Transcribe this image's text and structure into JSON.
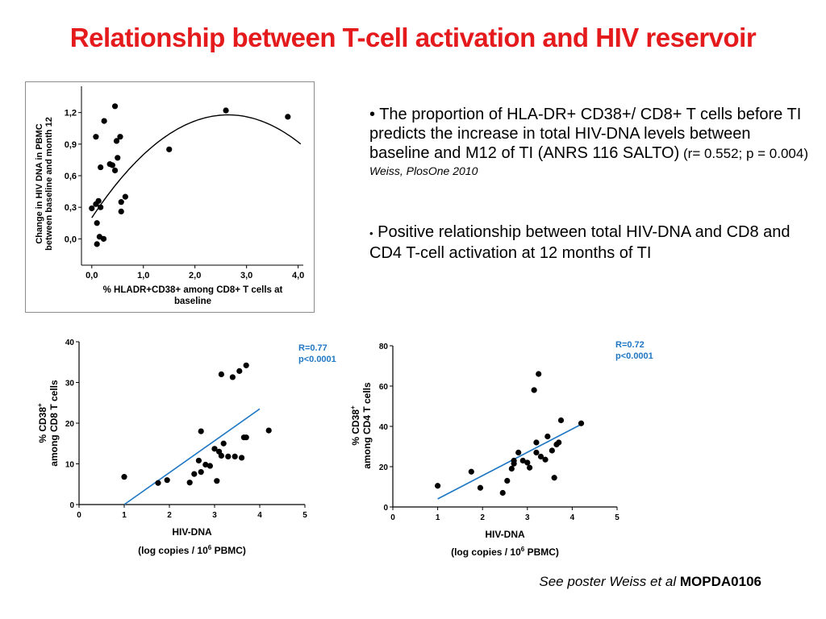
{
  "title": "Relationship between T-cell activation and HIV reservoir",
  "bullets": [
    {
      "bullet": "•",
      "text": "The proportion of HLA-DR+ CD38+/ CD8+ T cells before TI predicts the increase in total HIV-DNA levels between baseline and M12 of TI (ANRS 116 SALTO)",
      "stats": " (r= 0.552; p = 0.004)",
      "citation": "Weiss, PlosOne 2010"
    },
    {
      "bullet": "•",
      "text": " Positive relationship between total HIV-DNA and CD8 and CD4 T-cell activation at 12 months of TI"
    }
  ],
  "footer": {
    "italic": "See poster Weiss et al ",
    "bold": "MOPDA0106"
  },
  "chart_data": [
    {
      "type": "scatter",
      "ylabel_line1": "Change in HIV DNA in PBMC",
      "ylabel_line2": "between baseline and month 12",
      "xlabel_line1": "% HLADR+CD38+ among CD8+ T cells at",
      "xlabel_line2": "baseline",
      "xticks": [
        0,
        1,
        2,
        3,
        4
      ],
      "xtick_labels": [
        "0,0",
        "1,0",
        "2,0",
        "3,0",
        "4,0"
      ],
      "yticks": [
        0,
        0.3,
        0.6,
        0.9,
        1.2
      ],
      "ytick_labels": [
        "0,0",
        "0,3",
        "0,6",
        "0,9",
        "1,2"
      ],
      "xlim": [
        -0.2,
        4.1
      ],
      "ylim": [
        -0.25,
        1.45
      ],
      "fit": "quadratic",
      "fit_coefficients": [
        0.2,
        0.74,
        -0.14
      ],
      "points": [
        [
          0.0,
          0.29
        ],
        [
          0.08,
          0.33
        ],
        [
          0.08,
          0.97
        ],
        [
          0.1,
          0.15
        ],
        [
          0.1,
          -0.05
        ],
        [
          0.13,
          0.36
        ],
        [
          0.17,
          0.68
        ],
        [
          0.15,
          0.02
        ],
        [
          0.17,
          0.3
        ],
        [
          0.23,
          0.0
        ],
        [
          0.24,
          1.12
        ],
        [
          0.35,
          0.71
        ],
        [
          0.4,
          0.7
        ],
        [
          0.45,
          1.26
        ],
        [
          0.45,
          0.65
        ],
        [
          0.48,
          0.93
        ],
        [
          0.5,
          0.77
        ],
        [
          0.55,
          0.97
        ],
        [
          0.57,
          0.35
        ],
        [
          0.57,
          0.26
        ],
        [
          0.65,
          0.4
        ],
        [
          1.5,
          0.85
        ],
        [
          2.6,
          1.22
        ],
        [
          3.8,
          1.16
        ]
      ]
    },
    {
      "type": "scatter",
      "ylabel_line1": "% CD38",
      "ylabel_sup": "+",
      "ylabel_line2": "among CD8 T cells",
      "xlabel_line1": "HIV-DNA",
      "xlabel_line2_pre": "(log copies / 10",
      "xlabel_sup": "6",
      "xlabel_line2_post": " PBMC)",
      "annotation_r": "R=0.77",
      "annotation_p": "p<0.0001",
      "xticks": [
        0,
        1,
        2,
        3,
        4,
        5
      ],
      "xtick_labels": [
        "0",
        "1",
        "2",
        "3",
        "4",
        "5"
      ],
      "yticks": [
        0,
        10,
        20,
        30,
        40
      ],
      "ytick_labels": [
        "0",
        "10",
        "20",
        "30",
        "40"
      ],
      "xlim": [
        0,
        5
      ],
      "ylim": [
        0,
        40
      ],
      "fit": "linear",
      "fit_line": [
        [
          1.0,
          0.0
        ],
        [
          4.0,
          23.5
        ]
      ],
      "points": [
        [
          1.0,
          6.8
        ],
        [
          1.75,
          5.3
        ],
        [
          1.95,
          6.0
        ],
        [
          2.45,
          5.4
        ],
        [
          2.55,
          7.5
        ],
        [
          2.65,
          10.8
        ],
        [
          2.7,
          18.0
        ],
        [
          2.7,
          8.0
        ],
        [
          2.8,
          9.8
        ],
        [
          2.9,
          9.5
        ],
        [
          3.0,
          13.7
        ],
        [
          3.05,
          5.8
        ],
        [
          3.1,
          13.0
        ],
        [
          3.15,
          12.0
        ],
        [
          3.2,
          15.0
        ],
        [
          3.3,
          11.8
        ],
        [
          3.45,
          11.8
        ],
        [
          3.6,
          11.5
        ],
        [
          3.65,
          16.5
        ],
        [
          3.7,
          16.5
        ],
        [
          3.15,
          32.0
        ],
        [
          3.4,
          31.3
        ],
        [
          3.55,
          32.8
        ],
        [
          3.7,
          34.2
        ],
        [
          4.2,
          18.2
        ]
      ]
    },
    {
      "type": "scatter",
      "ylabel_line1": "% CD38",
      "ylabel_sup": "+",
      "ylabel_line2": "among CD4 T cells",
      "xlabel_line1": "HIV-DNA",
      "xlabel_line2_pre": "(log copies / 10",
      "xlabel_sup": "6",
      "xlabel_line2_post": " PBMC)",
      "annotation_r": "R=0.72",
      "annotation_p": "p<0.0001",
      "xticks": [
        0,
        1,
        2,
        3,
        4,
        5
      ],
      "xtick_labels": [
        "0",
        "1",
        "2",
        "3",
        "4",
        "5"
      ],
      "yticks": [
        0,
        20,
        40,
        60,
        80
      ],
      "ytick_labels": [
        "0",
        "20",
        "40",
        "60",
        "80"
      ],
      "xlim": [
        0,
        5
      ],
      "ylim": [
        0,
        80
      ],
      "fit": "linear",
      "fit_line": [
        [
          1.0,
          4.0
        ],
        [
          4.2,
          41.0
        ]
      ],
      "points": [
        [
          1.0,
          10.5
        ],
        [
          1.75,
          17.5
        ],
        [
          1.95,
          9.5
        ],
        [
          2.45,
          7.0
        ],
        [
          2.55,
          13.0
        ],
        [
          2.65,
          19.0
        ],
        [
          2.7,
          23.0
        ],
        [
          2.7,
          21.5
        ],
        [
          2.8,
          27.0
        ],
        [
          2.9,
          23.0
        ],
        [
          3.0,
          22.0
        ],
        [
          3.05,
          19.5
        ],
        [
          3.15,
          58.0
        ],
        [
          3.2,
          32.0
        ],
        [
          3.25,
          66.0
        ],
        [
          3.3,
          25.0
        ],
        [
          3.4,
          23.5
        ],
        [
          3.45,
          35.0
        ],
        [
          3.55,
          28.0
        ],
        [
          3.6,
          14.5
        ],
        [
          3.65,
          31.0
        ],
        [
          3.7,
          32.0
        ],
        [
          3.75,
          43.0
        ],
        [
          4.2,
          41.5
        ],
        [
          3.2,
          27.0
        ]
      ]
    }
  ],
  "colors": {
    "title": "#e41a1c",
    "stats_text": "#1f77c4",
    "fit_line": "#1f77c4",
    "points": "#000000"
  }
}
